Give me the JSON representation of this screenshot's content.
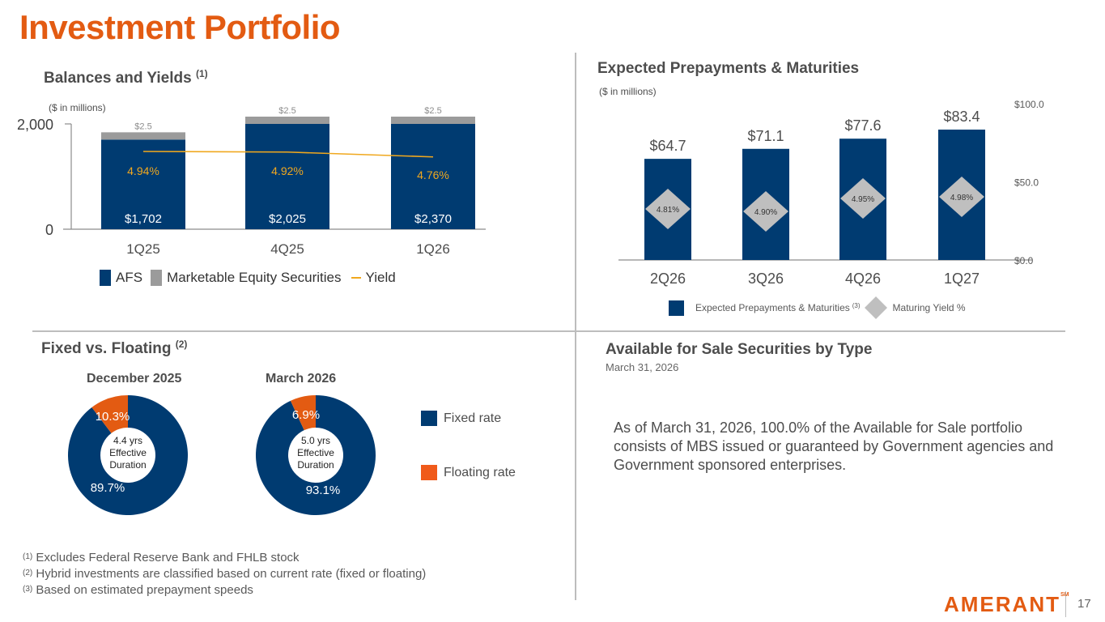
{
  "page": {
    "title": "Investment Portfolio",
    "page_number": "17",
    "logo_text": "AMERANT",
    "logo_mark": "SM"
  },
  "balances": {
    "title": "Balances and Yields",
    "title_note": "(1)",
    "units": "($ in millions)"
  },
  "prepayments": {
    "title": "Expected Prepayments & Maturities",
    "units": "($ in millions)"
  },
  "fixed_floating": {
    "title": "Fixed vs. Floating",
    "title_note": "(2)",
    "legend": [
      {
        "label": "Fixed rate",
        "color": "#003b71"
      },
      {
        "label": "Floating rate",
        "color": "#f05a1a"
      }
    ]
  },
  "afs": {
    "title": "Available for Sale Securities by Type",
    "date": "March 31, 2026",
    "text": "As of March 31, 2026, 100.0% of the Available for Sale portfolio consists of MBS issued or guaranteed by Government agencies and Government sponsored enterprises."
  },
  "footnotes": [
    {
      "num": "(1)",
      "text": "Excludes Federal Reserve Bank and FHLB stock"
    },
    {
      "num": "(2)",
      "text": "Hybrid investments are classified based on current rate (fixed or floating)"
    },
    {
      "num": "(3)",
      "text": "Based on estimated prepayment speeds"
    }
  ],
  "colors": {
    "brand_orange": "#e35b12",
    "navy": "#003b71",
    "gray": "#9b9b9b",
    "yield_line": "#f0a81e",
    "diamond": "#bfbfbf",
    "floating": "#e35b12"
  },
  "chart_data": [
    {
      "id": "balances_yields",
      "type": "bar",
      "stacked": true,
      "title": "Balances and Yields",
      "ylabel": "($ in millions)",
      "categories": [
        "1Q25",
        "4Q25",
        "1Q26"
      ],
      "yticks": [
        "0",
        "2,000"
      ],
      "ylim": [
        0,
        2000
      ],
      "series": [
        {
          "name": "AFS",
          "values": [
            1702,
            2025,
            2370
          ],
          "labels": [
            "$1,702",
            "$2,025",
            "$2,370"
          ],
          "color": "#003b71"
        },
        {
          "name": "Marketable Equity Securities",
          "values": [
            2.5,
            2.5,
            2.5
          ],
          "labels": [
            "$2.5",
            "$2.5",
            "$2.5"
          ],
          "color": "#9b9b9b"
        },
        {
          "name": "Yield",
          "type": "line",
          "values": [
            4.94,
            4.92,
            4.76
          ],
          "labels": [
            "4.94%",
            "4.92%",
            "4.76%"
          ],
          "color": "#f0a81e"
        }
      ],
      "legend": [
        "AFS",
        "Marketable Equity Securities",
        "Yield"
      ],
      "legend_position": "bottom"
    },
    {
      "id": "prepayments_maturities",
      "type": "bar",
      "title": "Expected Prepayments & Maturities",
      "ylabel": "($ in millions)",
      "categories": [
        "2Q26",
        "3Q26",
        "4Q26",
        "1Q27"
      ],
      "yticks": [
        "$0.0",
        "$50.0",
        "$100.0"
      ],
      "ylim": [
        0,
        100
      ],
      "series": [
        {
          "name": "Expected Prepayments & Maturities",
          "note": "(3)",
          "values": [
            64.7,
            71.1,
            77.6,
            83.4
          ],
          "labels": [
            "$64.7",
            "$71.1",
            "$77.6",
            "$83.4"
          ],
          "color": "#003b71"
        },
        {
          "name": "Maturing Yield %",
          "type": "scatter",
          "marker": "diamond",
          "values": [
            4.81,
            4.9,
            4.95,
            4.98
          ],
          "labels": [
            "4.81%",
            "4.90%",
            "4.95%",
            "4.98%"
          ],
          "color": "#bfbfbf"
        }
      ],
      "legend_position": "bottom"
    },
    {
      "id": "fixed_floating_dec2025",
      "type": "pie",
      "donut": true,
      "title": "December 2025",
      "center_text": [
        "4.4 yrs",
        "Effective",
        "Duration"
      ],
      "categories": [
        "Fixed rate",
        "Floating rate"
      ],
      "values": [
        89.7,
        10.3
      ],
      "labels": [
        "89.7%",
        "10.3%"
      ]
    },
    {
      "id": "fixed_floating_mar2026",
      "type": "pie",
      "donut": true,
      "title": "March 2026",
      "center_text": [
        "5.0  yrs",
        "Effective",
        "Duration"
      ],
      "categories": [
        "Fixed rate",
        "Floating rate"
      ],
      "values": [
        93.1,
        6.9
      ],
      "labels": [
        "93.1%",
        "6.9%"
      ]
    }
  ]
}
